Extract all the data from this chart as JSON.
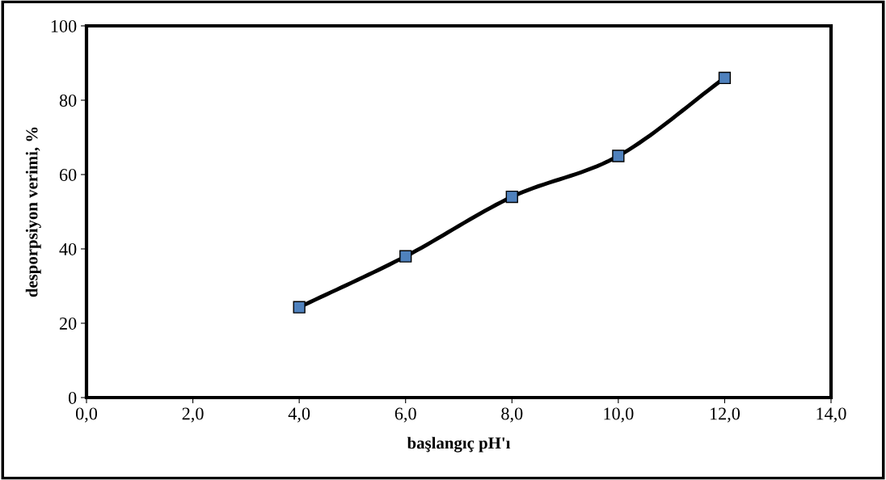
{
  "chart_data": {
    "type": "line",
    "xlabel": "başlangıç pH'ı",
    "ylabel": "desporpsiyon verimi, %",
    "x": [
      4,
      6,
      8,
      10,
      12
    ],
    "series": [
      {
        "color": "#4f81bd",
        "values": [
          24.3,
          38,
          54,
          65,
          86
        ]
      }
    ],
    "xlim": [
      0,
      14
    ],
    "ylim": [
      0,
      100
    ],
    "xticks": [
      {
        "value": 0,
        "label": "0,0"
      },
      {
        "value": 2,
        "label": "2,0"
      },
      {
        "value": 4,
        "label": "4,0"
      },
      {
        "value": 6,
        "label": "6,0"
      },
      {
        "value": 8,
        "label": "8,0"
      },
      {
        "value": 10,
        "label": "10,0"
      },
      {
        "value": 12,
        "label": "12,0"
      },
      {
        "value": 14,
        "label": "14,0"
      }
    ],
    "yticks": [
      0,
      20,
      40,
      60,
      80,
      100
    ],
    "marker": "square",
    "line_style": "solid",
    "grid": false,
    "legend": false
  }
}
